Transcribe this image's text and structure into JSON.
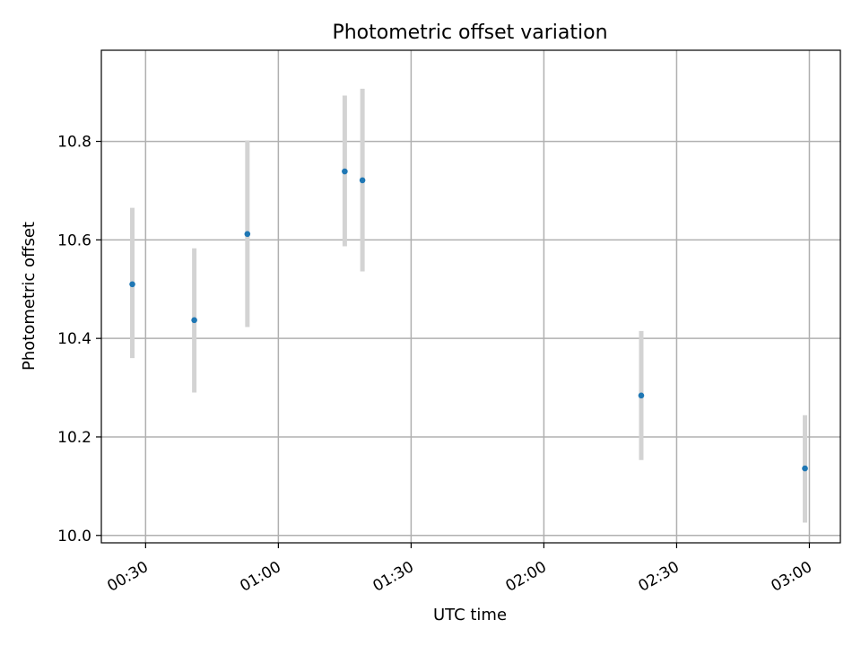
{
  "chart_data": {
    "type": "scatter",
    "title": "Photometric offset variation",
    "xlabel": "UTC time",
    "ylabel": "Photometric offset",
    "xlim": [
      "00:20",
      "03:07"
    ],
    "ylim": [
      9.985,
      10.985
    ],
    "x_ticks": [
      "00:30",
      "01:00",
      "01:30",
      "02:00",
      "02:30",
      "03:00"
    ],
    "y_ticks": [
      "10.0",
      "10.2",
      "10.4",
      "10.6",
      "10.8"
    ],
    "grid": true,
    "legend": false,
    "colors": {
      "point": "#1f77b4",
      "errorbar": "#d3d3d3",
      "grid": "#b0b0b0"
    },
    "points": [
      {
        "x": "00:27",
        "y": 10.51,
        "err_low": 10.36,
        "err_high": 10.665
      },
      {
        "x": "00:41",
        "y": 10.437,
        "err_low": 10.29,
        "err_high": 10.583
      },
      {
        "x": "00:53",
        "y": 10.612,
        "err_low": 10.423,
        "err_high": 10.802
      },
      {
        "x": "01:15",
        "y": 10.739,
        "err_low": 10.587,
        "err_high": 10.893
      },
      {
        "x": "01:19",
        "y": 10.721,
        "err_low": 10.536,
        "err_high": 10.907
      },
      {
        "x": "02:22",
        "y": 10.284,
        "err_low": 10.153,
        "err_high": 10.415
      },
      {
        "x": "02:59",
        "y": 10.136,
        "err_low": 10.026,
        "err_high": 10.244
      }
    ]
  }
}
